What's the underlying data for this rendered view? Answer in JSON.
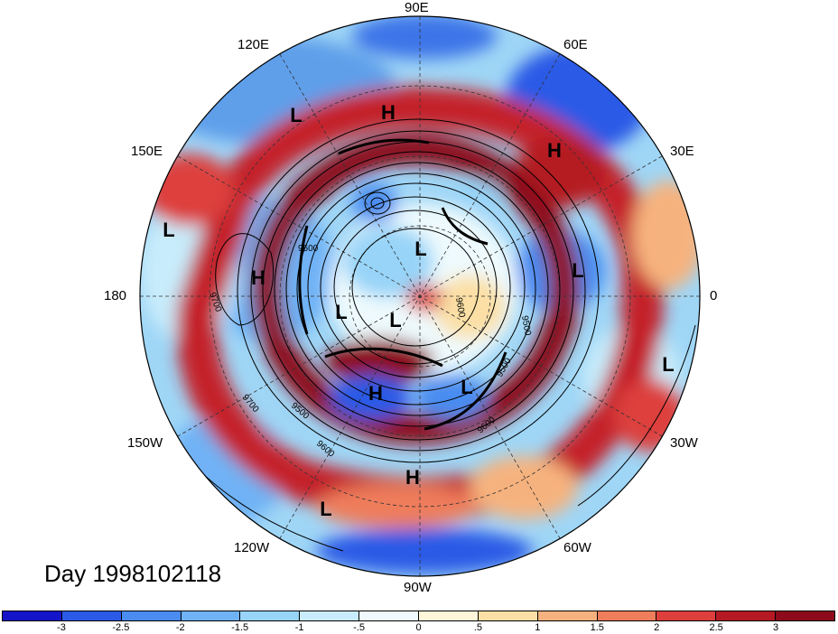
{
  "title": "Day 1998102118",
  "longitude_labels": [
    "90E",
    "60E",
    "30E",
    "0",
    "30W",
    "60W",
    "90W",
    "120W",
    "150W",
    "180",
    "150E",
    "120E"
  ],
  "contour_labels": [
    "9600",
    "9700",
    "9500",
    "9600",
    "9500",
    "9600",
    "9500",
    "9600",
    "9700"
  ],
  "pressure_centers": [
    {
      "label": "H"
    },
    {
      "label": "L"
    },
    {
      "label": "H"
    },
    {
      "label": "L"
    },
    {
      "label": "H"
    },
    {
      "label": "L"
    },
    {
      "label": "L"
    },
    {
      "label": "L"
    },
    {
      "label": "L"
    },
    {
      "label": "H"
    },
    {
      "label": "L"
    },
    {
      "label": "H"
    },
    {
      "label": "L"
    },
    {
      "label": "L"
    }
  ],
  "colorbar": {
    "tick_labels": [
      "-3",
      "-2.5",
      "-2",
      "-1.5",
      "-1",
      "-.5",
      "0",
      ".5",
      "1",
      "1.5",
      "2",
      "2.5",
      "3"
    ],
    "colors": [
      "#1414c8",
      "#2a5ae6",
      "#4a8cf0",
      "#6fb2f5",
      "#97d4f8",
      "#c8ecfb",
      "#eefafd",
      "#fdf6da",
      "#fbdfa4",
      "#f6b27e",
      "#ee7d5c",
      "#dd3f3c",
      "#b51a24",
      "#8c0a1c"
    ]
  }
}
